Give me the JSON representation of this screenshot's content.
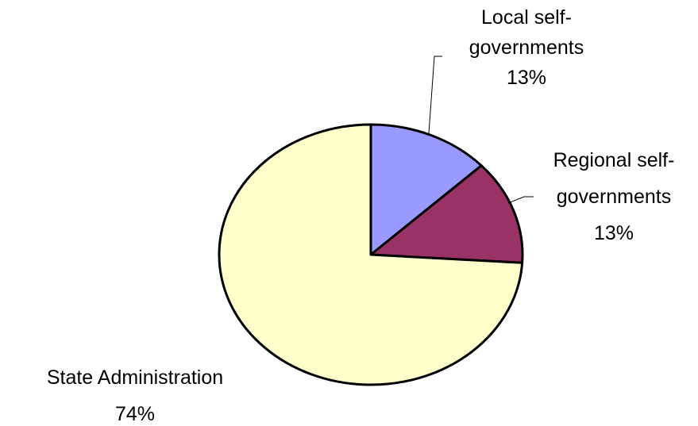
{
  "chart_data": {
    "type": "pie",
    "title": "",
    "start": "top",
    "direction": "clockwise",
    "legend": "none",
    "slices": [
      {
        "label_lines": [
          "Local self-",
          "governments"
        ],
        "percent_label": "13%",
        "value": 13,
        "color": "#9999ff"
      },
      {
        "label_lines": [
          "Regional self-",
          "governments"
        ],
        "percent_label": "13%",
        "value": 13,
        "color": "#993366"
      },
      {
        "label_lines": [
          "State Administration"
        ],
        "percent_label": "74%",
        "value": 74,
        "color": "#ffffcc"
      }
    ]
  }
}
